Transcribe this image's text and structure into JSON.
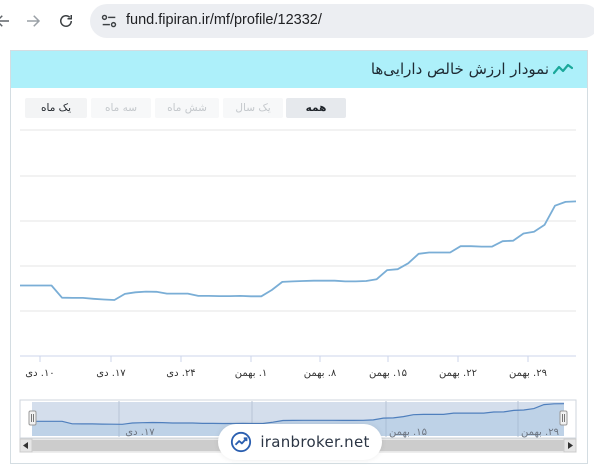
{
  "browser": {
    "url": "fund.fipiran.ir/mf/profile/12332/",
    "icons": [
      "back-arrow-icon",
      "forward-arrow-icon",
      "reload-icon",
      "site-info-icon"
    ]
  },
  "panel": {
    "title": "نمودار ارزش خالص دارایی‌ها",
    "header_color": "#adf0fa",
    "line_color": "#7aaed6"
  },
  "ranges": [
    {
      "label": "همه",
      "state": "selected"
    },
    {
      "label": "یک سال",
      "state": "disabled"
    },
    {
      "label": "شش ماه",
      "state": "disabled"
    },
    {
      "label": "سه ماه",
      "state": "disabled"
    },
    {
      "label": "یک ماه",
      "state": "enabled"
    }
  ],
  "chart_data": {
    "type": "line",
    "x_tick_labels": [
      "۱۰. دی",
      "۱۷. دی",
      "۲۴. دی",
      "۱. بهمن",
      "۸. بهمن",
      "۱۵. بهمن",
      "۲۲. بهمن",
      "۲۹. بهمن"
    ],
    "y_tick_labels": [],
    "grid": true,
    "values": [
      3.12,
      3.12,
      3.12,
      3.12,
      2.58,
      2.57,
      2.57,
      2.53,
      2.5,
      2.48,
      2.75,
      2.82,
      2.85,
      2.84,
      2.76,
      2.76,
      2.76,
      2.66,
      2.66,
      2.65,
      2.65,
      2.66,
      2.64,
      2.64,
      2.92,
      3.28,
      3.3,
      3.32,
      3.33,
      3.33,
      3.33,
      3.3,
      3.3,
      3.32,
      3.4,
      3.8,
      3.84,
      4.1,
      4.52,
      4.58,
      4.58,
      4.58,
      4.86,
      4.86,
      4.84,
      4.84,
      5.08,
      5.1,
      5.42,
      5.5,
      5.8,
      6.65,
      6.82,
      6.84
    ],
    "navigator_labels": [
      "۱۷. دی",
      "۱۵. بهمن",
      "۲۹. بهمن"
    ]
  },
  "watermark": {
    "text": "iranbroker.net",
    "icon": "chart-trend-icon"
  }
}
